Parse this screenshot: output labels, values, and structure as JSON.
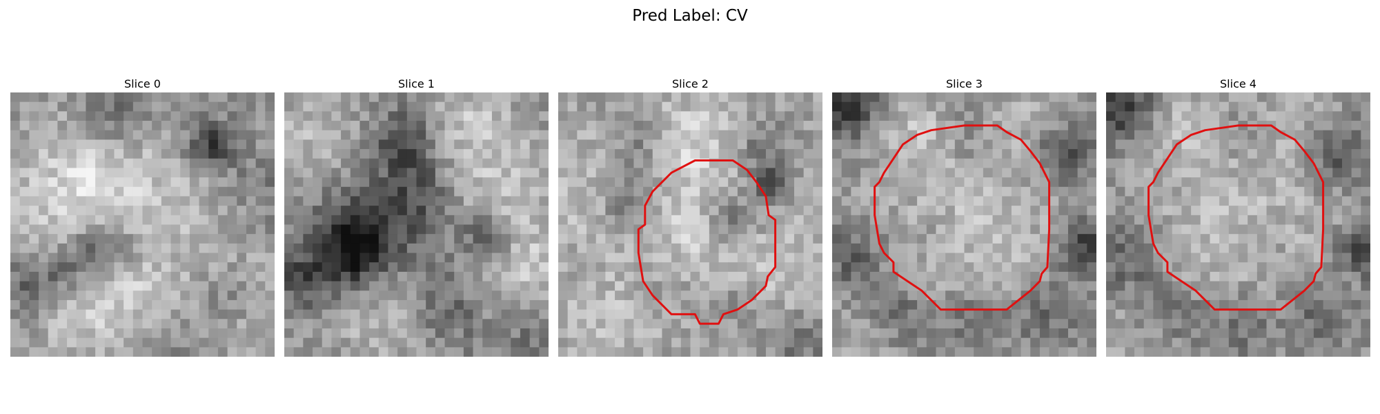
{
  "figure": {
    "title": "Pred Label: CV"
  },
  "panels": [
    {
      "title": "Slice 0",
      "contour": false
    },
    {
      "title": "Slice 1",
      "contour": false
    },
    {
      "title": "Slice 2",
      "contour": true
    },
    {
      "title": "Slice 3",
      "contour": true
    },
    {
      "title": "Slice 4",
      "contour": true
    }
  ],
  "colors": {
    "contour": "#e01010",
    "background": "#ffffff"
  }
}
